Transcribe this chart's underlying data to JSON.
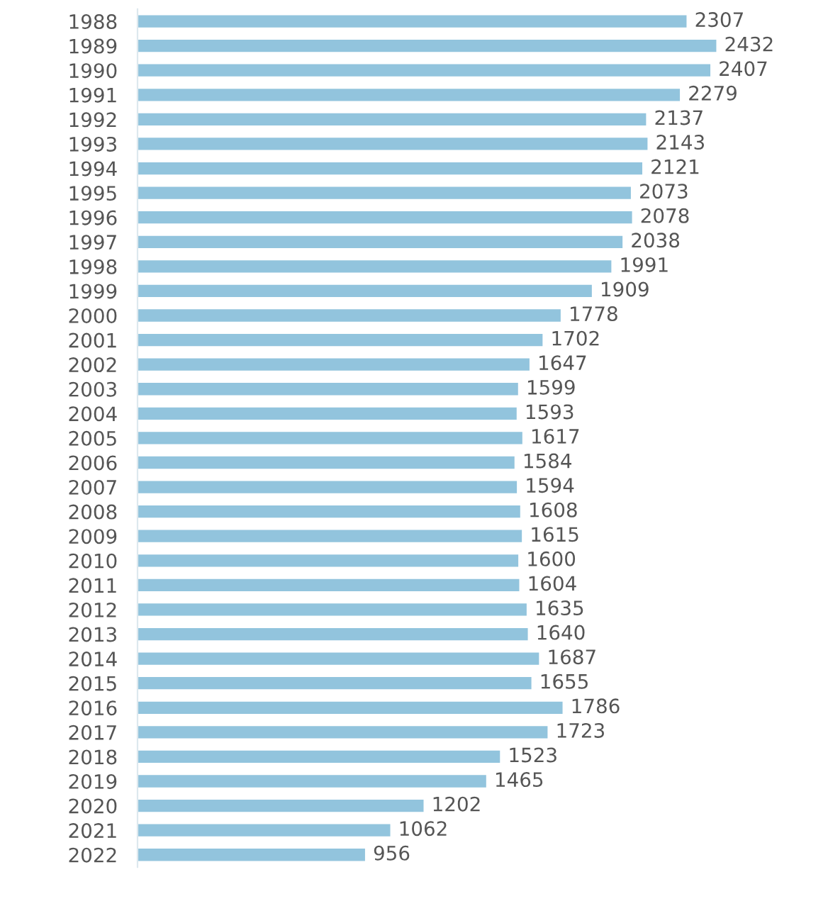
{
  "chart_data": {
    "type": "bar",
    "orientation": "horizontal",
    "tick_labels": "y",
    "data_labels": true,
    "color": "#92c4dd",
    "categories": [
      "1988",
      "1989",
      "1990",
      "1991",
      "1992",
      "1993",
      "1994",
      "1995",
      "1996",
      "1997",
      "1998",
      "1999",
      "2000",
      "2001",
      "2002",
      "2003",
      "2004",
      "2005",
      "2006",
      "2007",
      "2008",
      "2009",
      "2010",
      "2011",
      "2012",
      "2013",
      "2014",
      "2015",
      "2016",
      "2017",
      "2018",
      "2019",
      "2020",
      "2021",
      "2022"
    ],
    "values": [
      2307,
      2432,
      2407,
      2279,
      2137,
      2143,
      2121,
      2073,
      2078,
      2038,
      1991,
      1909,
      1778,
      1702,
      1647,
      1599,
      1593,
      1617,
      1584,
      1594,
      1608,
      1615,
      1600,
      1604,
      1635,
      1640,
      1687,
      1655,
      1786,
      1723,
      1523,
      1465,
      1202,
      1062,
      956
    ]
  }
}
